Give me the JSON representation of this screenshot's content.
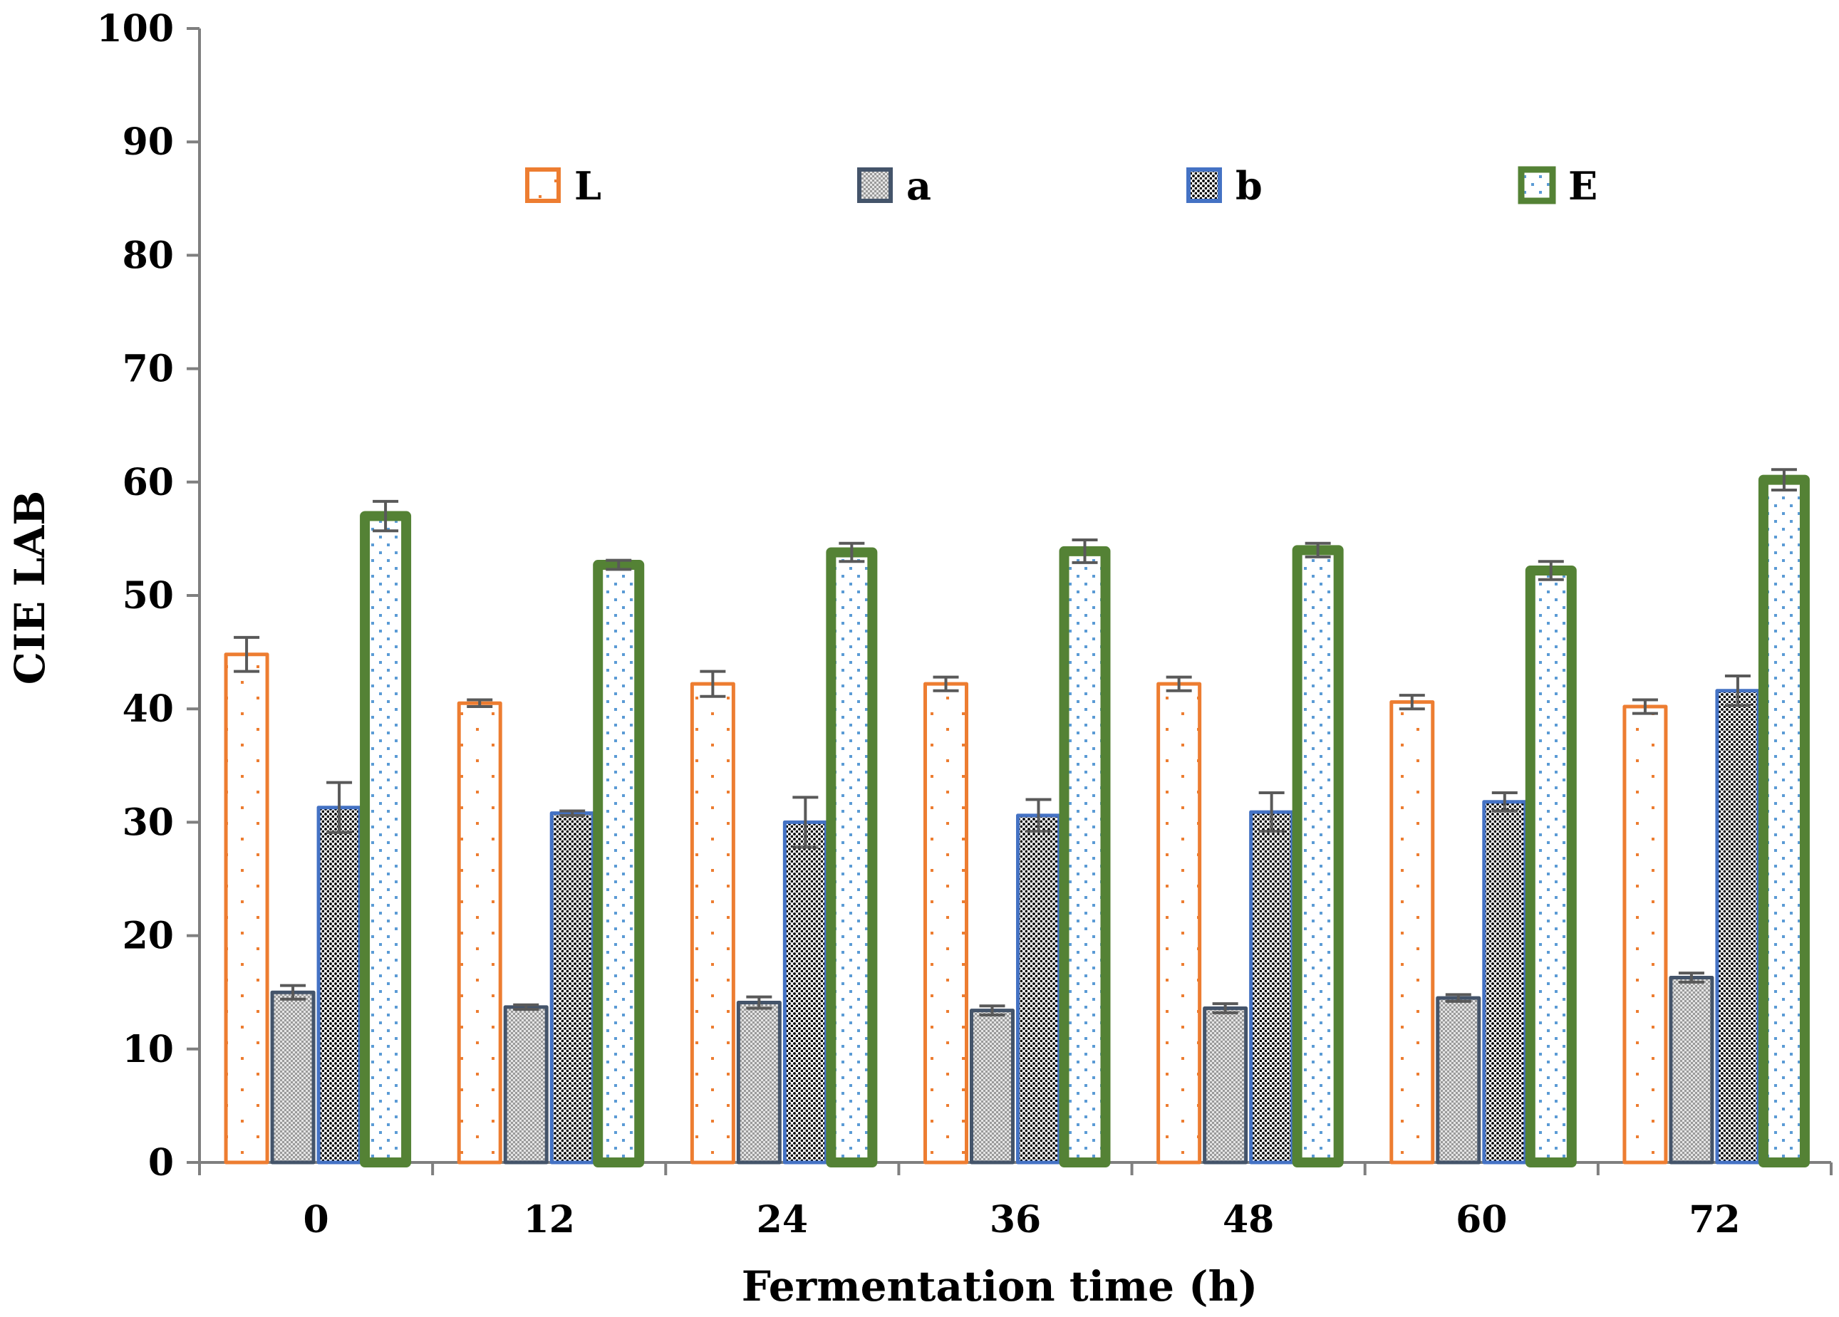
{
  "chart_data": {
    "type": "bar",
    "title": "",
    "xlabel": "Fermentation time (h)",
    "ylabel": "CIE LAB",
    "ylim": [
      0,
      100
    ],
    "yticks": [
      "0",
      "10",
      "20",
      "30",
      "40",
      "50",
      "60",
      "70",
      "80",
      "90",
      "100"
    ],
    "categories": [
      "0",
      "12",
      "24",
      "36",
      "48",
      "60",
      "72"
    ],
    "legend_position": "top",
    "grid": false,
    "series": [
      {
        "name": "L",
        "color": "#ED7D31",
        "pattern": "sparse-dots",
        "values": [
          44.8,
          40.5,
          42.2,
          42.2,
          42.2,
          40.6,
          40.2
        ],
        "errors": [
          1.5,
          0.3,
          1.1,
          0.6,
          0.6,
          0.6,
          0.6
        ]
      },
      {
        "name": "a",
        "color": "#44546A",
        "pattern": "grey-checker",
        "values": [
          15.0,
          13.7,
          14.1,
          13.4,
          13.6,
          14.5,
          16.3
        ],
        "errors": [
          0.6,
          0.2,
          0.5,
          0.4,
          0.4,
          0.3,
          0.4
        ]
      },
      {
        "name": "b",
        "color": "#4472C4",
        "pattern": "dense-dots",
        "values": [
          31.3,
          30.8,
          30.0,
          30.6,
          30.9,
          31.8,
          41.6
        ],
        "errors": [
          2.2,
          0.2,
          2.2,
          1.4,
          1.7,
          0.8,
          1.3
        ]
      },
      {
        "name": "E",
        "color": "#548235",
        "pattern": "blue-dots",
        "values": [
          57.0,
          52.7,
          53.8,
          53.9,
          54.0,
          52.2,
          60.2
        ],
        "errors": [
          1.3,
          0.4,
          0.8,
          1.0,
          0.6,
          0.8,
          0.9
        ]
      }
    ]
  }
}
